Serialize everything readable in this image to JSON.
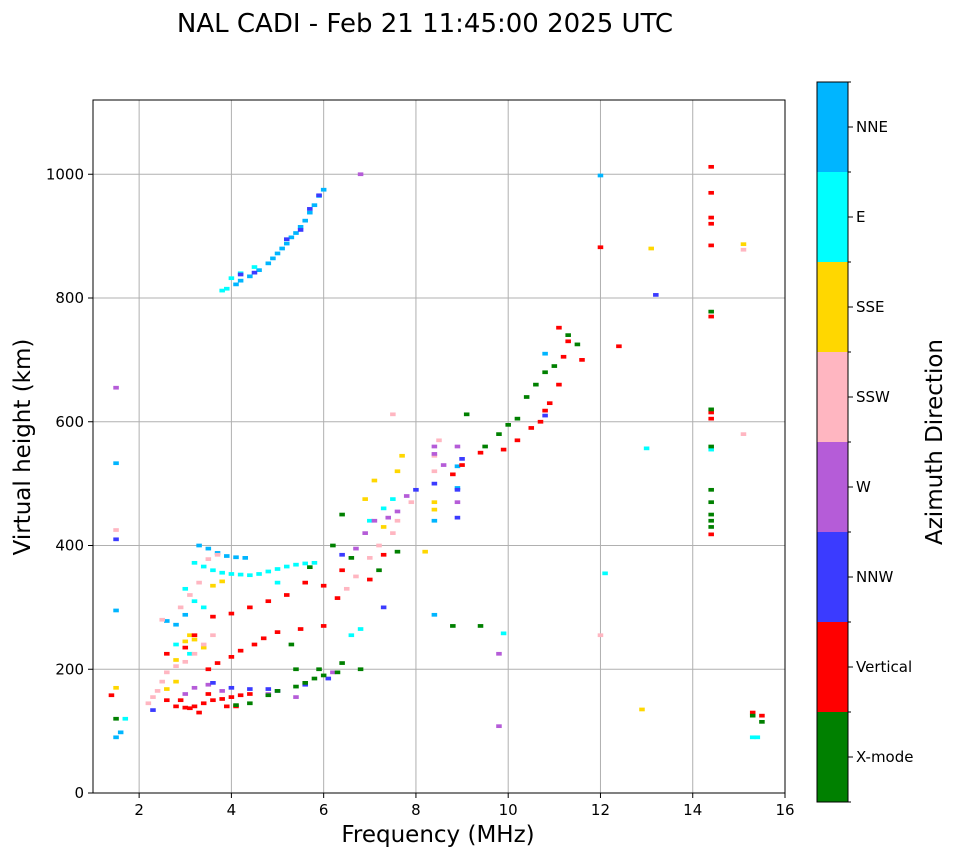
{
  "chart_data": {
    "type": "scatter",
    "title": "NAL CADI - Feb 21 11:45:00 2025 UTC",
    "xlabel": "Frequency (MHz)",
    "ylabel": "Virtual height (km)",
    "xlim": [
      1,
      16
    ],
    "ylim": [
      0,
      1120
    ],
    "xticks": [
      2,
      4,
      6,
      8,
      10,
      12,
      14,
      16
    ],
    "yticks": [
      0,
      200,
      400,
      600,
      800,
      1000
    ],
    "grid": true,
    "colorbar": {
      "label": "Azimuth Direction",
      "categories": [
        {
          "name": "NNE",
          "color": "#00b5ff"
        },
        {
          "name": "E",
          "color": "#00ffff"
        },
        {
          "name": "SSE",
          "color": "#ffd700"
        },
        {
          "name": "SSW",
          "color": "#ffb6c1"
        },
        {
          "name": "W",
          "color": "#b55cd8"
        },
        {
          "name": "NNW",
          "color": "#3b3bff"
        },
        {
          "name": "Vertical",
          "color": "#ff0000"
        },
        {
          "name": "X-mode",
          "color": "#008000"
        }
      ]
    },
    "series": [
      {
        "name": "NNE",
        "points": [
          [
            4.1,
            822
          ],
          [
            4.2,
            828
          ],
          [
            4.4,
            835
          ],
          [
            4.6,
            845
          ],
          [
            4.8,
            856
          ],
          [
            4.9,
            864
          ],
          [
            5.0,
            872
          ],
          [
            5.1,
            880
          ],
          [
            5.2,
            888
          ],
          [
            5.3,
            898
          ],
          [
            5.4,
            905
          ],
          [
            5.5,
            915
          ],
          [
            5.6,
            925
          ],
          [
            5.7,
            938
          ],
          [
            5.8,
            950
          ],
          [
            5.9,
            965
          ],
          [
            6.0,
            975
          ],
          [
            1.5,
            533
          ],
          [
            1.5,
            295
          ],
          [
            3.3,
            400
          ],
          [
            3.5,
            395
          ],
          [
            3.7,
            388
          ],
          [
            3.9,
            383
          ],
          [
            4.1,
            381
          ],
          [
            4.3,
            380
          ],
          [
            2.6,
            278
          ],
          [
            2.8,
            272
          ],
          [
            3.0,
            288
          ],
          [
            8.4,
            440
          ],
          [
            8.4,
            288
          ],
          [
            8.9,
            493
          ],
          [
            8.9,
            528
          ],
          [
            12.0,
            998
          ],
          [
            10.8,
            710
          ],
          [
            1.6,
            98
          ],
          [
            1.5,
            90
          ]
        ]
      },
      {
        "name": "E",
        "points": [
          [
            3.8,
            812
          ],
          [
            3.9,
            815
          ],
          [
            4.0,
            832
          ],
          [
            4.2,
            840
          ],
          [
            4.5,
            850
          ],
          [
            3.2,
            372
          ],
          [
            3.4,
            366
          ],
          [
            3.6,
            360
          ],
          [
            3.8,
            356
          ],
          [
            4.0,
            354
          ],
          [
            4.2,
            353
          ],
          [
            4.4,
            352
          ],
          [
            4.6,
            354
          ],
          [
            4.8,
            358
          ],
          [
            5.0,
            362
          ],
          [
            5.2,
            366
          ],
          [
            5.4,
            369
          ],
          [
            5.6,
            371
          ],
          [
            5.8,
            372
          ],
          [
            3.0,
            330
          ],
          [
            3.2,
            310
          ],
          [
            3.4,
            300
          ],
          [
            2.8,
            240
          ],
          [
            3.1,
            225
          ],
          [
            7.0,
            440
          ],
          [
            7.3,
            460
          ],
          [
            7.5,
            475
          ],
          [
            6.6,
            255
          ],
          [
            6.8,
            265
          ],
          [
            9.9,
            258
          ],
          [
            12.1,
            355
          ],
          [
            13.0,
            557
          ],
          [
            14.4,
            555
          ],
          [
            15.3,
            90
          ],
          [
            15.4,
            90
          ],
          [
            1.7,
            120
          ],
          [
            5.0,
            340
          ]
        ]
      },
      {
        "name": "SSE",
        "points": [
          [
            2.8,
            215
          ],
          [
            3.0,
            245
          ],
          [
            3.1,
            255
          ],
          [
            3.2,
            248
          ],
          [
            3.4,
            235
          ],
          [
            2.6,
            168
          ],
          [
            2.8,
            180
          ],
          [
            3.6,
            335
          ],
          [
            3.8,
            342
          ],
          [
            6.9,
            475
          ],
          [
            7.1,
            505
          ],
          [
            7.3,
            430
          ],
          [
            7.6,
            520
          ],
          [
            7.7,
            545
          ],
          [
            8.4,
            458
          ],
          [
            8.4,
            470
          ],
          [
            8.2,
            390
          ],
          [
            13.1,
            880
          ],
          [
            15.1,
            887
          ],
          [
            12.9,
            135
          ],
          [
            1.5,
            170
          ]
        ]
      },
      {
        "name": "SSW",
        "points": [
          [
            2.2,
            145
          ],
          [
            2.3,
            155
          ],
          [
            2.4,
            165
          ],
          [
            2.5,
            180
          ],
          [
            2.6,
            195
          ],
          [
            2.8,
            205
          ],
          [
            3.0,
            212
          ],
          [
            3.2,
            225
          ],
          [
            3.4,
            240
          ],
          [
            3.6,
            255
          ],
          [
            2.5,
            280
          ],
          [
            2.9,
            300
          ],
          [
            3.1,
            320
          ],
          [
            3.3,
            340
          ],
          [
            3.5,
            378
          ],
          [
            3.7,
            385
          ],
          [
            6.5,
            330
          ],
          [
            6.7,
            350
          ],
          [
            7.0,
            380
          ],
          [
            7.2,
            400
          ],
          [
            7.5,
            420
          ],
          [
            7.6,
            440
          ],
          [
            7.9,
            470
          ],
          [
            8.4,
            520
          ],
          [
            8.4,
            545
          ],
          [
            8.5,
            570
          ],
          [
            15.1,
            580
          ],
          [
            15.1,
            878
          ],
          [
            12.0,
            255
          ],
          [
            1.5,
            425
          ],
          [
            7.5,
            612
          ]
        ]
      },
      {
        "name": "W",
        "points": [
          [
            3.0,
            160
          ],
          [
            3.2,
            170
          ],
          [
            3.5,
            175
          ],
          [
            3.8,
            165
          ],
          [
            6.2,
            195
          ],
          [
            6.7,
            395
          ],
          [
            6.9,
            420
          ],
          [
            7.1,
            440
          ],
          [
            7.4,
            445
          ],
          [
            7.6,
            455
          ],
          [
            7.8,
            480
          ],
          [
            8.4,
            548
          ],
          [
            8.4,
            560
          ],
          [
            8.9,
            470
          ],
          [
            8.9,
            560
          ],
          [
            8.6,
            530
          ],
          [
            1.5,
            655
          ],
          [
            6.8,
            1000
          ],
          [
            9.8,
            225
          ],
          [
            9.8,
            108
          ],
          [
            4.8,
            160
          ],
          [
            5.4,
            155
          ]
        ]
      },
      {
        "name": "NNW",
        "points": [
          [
            4.2,
            838
          ],
          [
            4.5,
            841
          ],
          [
            5.2,
            895
          ],
          [
            5.5,
            910
          ],
          [
            5.7,
            944
          ],
          [
            5.9,
            966
          ],
          [
            3.6,
            178
          ],
          [
            4.0,
            170
          ],
          [
            4.4,
            168
          ],
          [
            4.8,
            168
          ],
          [
            5.0,
            165
          ],
          [
            5.6,
            175
          ],
          [
            6.1,
            185
          ],
          [
            8.0,
            490
          ],
          [
            8.4,
            500
          ],
          [
            8.9,
            445
          ],
          [
            8.9,
            490
          ],
          [
            9.0,
            540
          ],
          [
            13.2,
            805
          ],
          [
            10.8,
            610
          ],
          [
            1.5,
            410
          ],
          [
            7.3,
            300
          ],
          [
            6.4,
            385
          ],
          [
            2.3,
            134
          ]
        ]
      },
      {
        "name": "Vertical",
        "points": [
          [
            2.8,
            140
          ],
          [
            3.0,
            138
          ],
          [
            3.1,
            137
          ],
          [
            3.2,
            140
          ],
          [
            3.4,
            145
          ],
          [
            3.6,
            150
          ],
          [
            3.8,
            152
          ],
          [
            4.0,
            155
          ],
          [
            4.2,
            158
          ],
          [
            4.4,
            160
          ],
          [
            3.3,
            130
          ],
          [
            3.5,
            160
          ],
          [
            3.9,
            140
          ],
          [
            4.1,
            140
          ],
          [
            2.6,
            150
          ],
          [
            2.9,
            150
          ],
          [
            3.5,
            200
          ],
          [
            3.7,
            210
          ],
          [
            4.0,
            220
          ],
          [
            4.2,
            230
          ],
          [
            4.5,
            240
          ],
          [
            4.7,
            250
          ],
          [
            5.0,
            260
          ],
          [
            5.5,
            265
          ],
          [
            6.0,
            270
          ],
          [
            2.6,
            225
          ],
          [
            3.0,
            235
          ],
          [
            3.2,
            255
          ],
          [
            3.6,
            285
          ],
          [
            4.0,
            290
          ],
          [
            4.4,
            300
          ],
          [
            4.8,
            310
          ],
          [
            5.2,
            320
          ],
          [
            5.6,
            340
          ],
          [
            6.0,
            335
          ],
          [
            6.4,
            360
          ],
          [
            6.3,
            315
          ],
          [
            7.0,
            345
          ],
          [
            7.3,
            385
          ],
          [
            8.8,
            515
          ],
          [
            9.0,
            530
          ],
          [
            9.4,
            550
          ],
          [
            9.9,
            555
          ],
          [
            10.2,
            570
          ],
          [
            10.5,
            590
          ],
          [
            10.7,
            600
          ],
          [
            10.8,
            618
          ],
          [
            10.9,
            630
          ],
          [
            11.1,
            660
          ],
          [
            11.2,
            705
          ],
          [
            11.1,
            752
          ],
          [
            11.3,
            730
          ],
          [
            11.6,
            700
          ],
          [
            12.4,
            722
          ],
          [
            12.0,
            882
          ],
          [
            14.4,
            1012
          ],
          [
            14.4,
            970
          ],
          [
            14.4,
            930
          ],
          [
            14.4,
            920
          ],
          [
            14.4,
            885
          ],
          [
            14.4,
            770
          ],
          [
            14.4,
            615
          ],
          [
            14.4,
            605
          ],
          [
            14.4,
            418
          ],
          [
            15.3,
            130
          ],
          [
            15.5,
            125
          ],
          [
            1.4,
            158
          ]
        ]
      },
      {
        "name": "X-mode",
        "points": [
          [
            4.1,
            142
          ],
          [
            4.4,
            145
          ],
          [
            4.8,
            158
          ],
          [
            5.0,
            165
          ],
          [
            5.4,
            172
          ],
          [
            5.6,
            178
          ],
          [
            5.8,
            185
          ],
          [
            6.0,
            190
          ],
          [
            6.3,
            195
          ],
          [
            6.4,
            210
          ],
          [
            6.8,
            200
          ],
          [
            5.9,
            200
          ],
          [
            5.4,
            200
          ],
          [
            5.3,
            240
          ],
          [
            5.7,
            365
          ],
          [
            6.2,
            400
          ],
          [
            6.4,
            450
          ],
          [
            6.6,
            380
          ],
          [
            7.2,
            360
          ],
          [
            7.6,
            390
          ],
          [
            8.8,
            270
          ],
          [
            9.4,
            270
          ],
          [
            9.1,
            612
          ],
          [
            9.5,
            560
          ],
          [
            9.8,
            580
          ],
          [
            10.0,
            595
          ],
          [
            10.2,
            605
          ],
          [
            10.4,
            640
          ],
          [
            10.6,
            660
          ],
          [
            10.8,
            680
          ],
          [
            11.0,
            690
          ],
          [
            11.3,
            740
          ],
          [
            11.5,
            725
          ],
          [
            14.4,
            778
          ],
          [
            14.4,
            620
          ],
          [
            14.4,
            560
          ],
          [
            14.4,
            490
          ],
          [
            14.4,
            470
          ],
          [
            14.4,
            450
          ],
          [
            14.4,
            440
          ],
          [
            14.4,
            430
          ],
          [
            15.5,
            115
          ],
          [
            15.3,
            125
          ],
          [
            1.5,
            120
          ]
        ]
      }
    ]
  }
}
